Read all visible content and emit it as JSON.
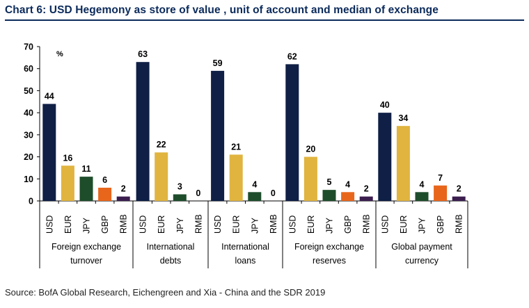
{
  "title": "Chart 6: USD Hegemony as store of value , unit of account and median of exchange",
  "source": "Source: BofA Global Research, Eichengreen and Xia - China and the SDR 2019",
  "colors": {
    "USD": "#0f1f45",
    "EUR": "#e0b43f",
    "JPY": "#1e4d2b",
    "GBP": "#e8661c",
    "RMB": "#3b1e4e",
    "title": "#0b2a5b"
  },
  "chart_data": {
    "type": "bar",
    "ylabel": "%",
    "ylim": [
      0,
      70
    ],
    "yticks": [
      0,
      10,
      20,
      30,
      40,
      50,
      60,
      70
    ],
    "grid": false,
    "groups": [
      {
        "label": [
          "Foreign exchange",
          "turnover"
        ],
        "bars": [
          {
            "currency": "USD",
            "value": 44
          },
          {
            "currency": "EUR",
            "value": 16
          },
          {
            "currency": "JPY",
            "value": 11
          },
          {
            "currency": "GBP",
            "value": 6
          },
          {
            "currency": "RMB",
            "value": 2
          }
        ]
      },
      {
        "label": [
          "International",
          "debts"
        ],
        "bars": [
          {
            "currency": "USD",
            "value": 63
          },
          {
            "currency": "EUR",
            "value": 22
          },
          {
            "currency": "JPY",
            "value": 3
          },
          {
            "currency": "RMB",
            "value": 0
          }
        ]
      },
      {
        "label": [
          "International",
          "loans"
        ],
        "bars": [
          {
            "currency": "USD",
            "value": 59
          },
          {
            "currency": "EUR",
            "value": 21
          },
          {
            "currency": "JPY",
            "value": 4
          },
          {
            "currency": "RMB",
            "value": 0
          }
        ]
      },
      {
        "label": [
          "Foreign exchange",
          "reserves"
        ],
        "bars": [
          {
            "currency": "USD",
            "value": 62
          },
          {
            "currency": "EUR",
            "value": 20
          },
          {
            "currency": "JPY",
            "value": 5
          },
          {
            "currency": "GBP",
            "value": 4
          },
          {
            "currency": "RMB",
            "value": 2
          }
        ]
      },
      {
        "label": [
          "Global payment",
          "currency"
        ],
        "bars": [
          {
            "currency": "USD",
            "value": 40
          },
          {
            "currency": "EUR",
            "value": 34
          },
          {
            "currency": "JPY",
            "value": 4
          },
          {
            "currency": "GBP",
            "value": 7
          },
          {
            "currency": "RMB",
            "value": 2
          }
        ]
      }
    ]
  }
}
